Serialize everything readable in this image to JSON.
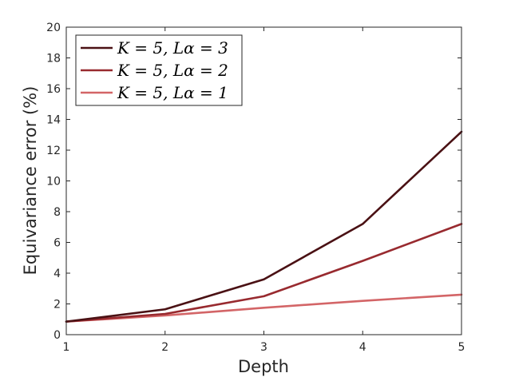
{
  "chart_data": {
    "type": "line",
    "x": [
      1,
      2,
      3,
      4,
      5
    ],
    "xticks": [
      "1",
      "2",
      "3",
      "4",
      "5"
    ],
    "yticks": [
      "0",
      "2",
      "4",
      "6",
      "8",
      "10",
      "12",
      "14",
      "16",
      "18",
      "20"
    ],
    "xlabel": "Depth",
    "ylabel": "Equivariance error (%)",
    "xlim": [
      1,
      5
    ],
    "ylim": [
      0,
      20
    ],
    "grid": false,
    "legend_position": "top-left",
    "series": [
      {
        "name": "K = 5, Lα = 3",
        "color": "#4a1114",
        "values": [
          0.85,
          1.65,
          3.6,
          7.2,
          13.2
        ]
      },
      {
        "name": "K = 5, Lα = 2",
        "color": "#982a2f",
        "values": [
          0.85,
          1.35,
          2.5,
          4.8,
          7.2
        ]
      },
      {
        "name": "K = 5, Lα = 1",
        "color": "#d36567",
        "values": [
          0.85,
          1.25,
          1.75,
          2.2,
          2.6
        ]
      }
    ]
  }
}
